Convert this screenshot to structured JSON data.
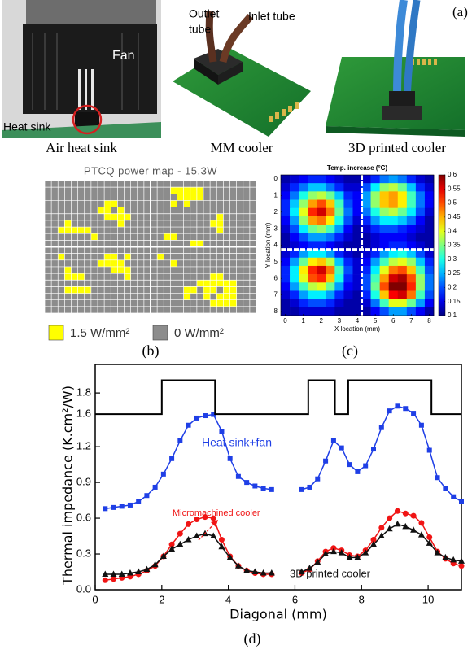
{
  "panel_a": {
    "captions": [
      "Air heat sink",
      "MM cooler",
      "3D printed cooler"
    ],
    "fan_label": "Fan",
    "heat_sink_label": "Heat sink",
    "outlet_label": [
      "Outlet",
      "tube"
    ],
    "inlet_label": "Inlet tube",
    "panel_label": "(a)"
  },
  "panel_labels": [
    "(b)",
    "(c)",
    "(d)"
  ],
  "chart_data": [
    {
      "type": "grid",
      "title": "PTCQ power map - 15.3W",
      "rows": 20,
      "cols": 32,
      "on_color": "#ffff00",
      "off_color": "#8c8c8c",
      "cells": [
        [
          1,
          19
        ],
        [
          1,
          20
        ],
        [
          1,
          21
        ],
        [
          1,
          22
        ],
        [
          1,
          23
        ],
        [
          2,
          20
        ],
        [
          2,
          21
        ],
        [
          2,
          22
        ],
        [
          2,
          23
        ],
        [
          3,
          9
        ],
        [
          3,
          10
        ],
        [
          3,
          19
        ],
        [
          3,
          21
        ],
        [
          4,
          8
        ],
        [
          4,
          9
        ],
        [
          4,
          11
        ],
        [
          5,
          9
        ],
        [
          5,
          10
        ],
        [
          5,
          11
        ],
        [
          5,
          12
        ],
        [
          5,
          26
        ],
        [
          6,
          3
        ],
        [
          6,
          11
        ],
        [
          6,
          25
        ],
        [
          6,
          26
        ],
        [
          7,
          2
        ],
        [
          7,
          3
        ],
        [
          7,
          4
        ],
        [
          7,
          5
        ],
        [
          7,
          6
        ],
        [
          7,
          26
        ],
        [
          8,
          7
        ],
        [
          8,
          18
        ],
        [
          8,
          19
        ],
        [
          9,
          22
        ],
        [
          9,
          23
        ],
        [
          11,
          2
        ],
        [
          11,
          9
        ],
        [
          11,
          10
        ],
        [
          11,
          12
        ],
        [
          11,
          17
        ],
        [
          12,
          8
        ],
        [
          12,
          9
        ],
        [
          12,
          10
        ],
        [
          12,
          11
        ],
        [
          12,
          19
        ],
        [
          13,
          3
        ],
        [
          13,
          10
        ],
        [
          13,
          11
        ],
        [
          13,
          12
        ],
        [
          14,
          3
        ],
        [
          14,
          4
        ],
        [
          14,
          5
        ],
        [
          14,
          12
        ],
        [
          14,
          25
        ],
        [
          14,
          26
        ],
        [
          15,
          23
        ],
        [
          15,
          24
        ],
        [
          15,
          25
        ],
        [
          15,
          26
        ],
        [
          15,
          27
        ],
        [
          15,
          28
        ],
        [
          16,
          3
        ],
        [
          16,
          4
        ],
        [
          16,
          5
        ],
        [
          16,
          6
        ],
        [
          16,
          21
        ],
        [
          16,
          22
        ],
        [
          16,
          24
        ],
        [
          16,
          25
        ],
        [
          16,
          27
        ],
        [
          16,
          28
        ],
        [
          17,
          21
        ],
        [
          17,
          24
        ],
        [
          17,
          26
        ],
        [
          17,
          27
        ],
        [
          17,
          28
        ],
        [
          18,
          25
        ],
        [
          18,
          26
        ],
        [
          18,
          27
        ],
        [
          18,
          28
        ]
      ],
      "legend": [
        {
          "label": "1.5 W/mm²",
          "color": "#ffff00"
        },
        {
          "label": "0 W/mm²",
          "color": "#8c8c8c"
        }
      ]
    },
    {
      "type": "heatmap",
      "title": "Temp. increase (°C)",
      "xlabel": "X location (mm)",
      "ylabel": "Y location (mm)",
      "x": [
        0,
        0.5,
        1,
        1.5,
        2,
        2.5,
        3,
        3.5,
        4,
        4.5,
        5,
        5.5,
        6,
        6.5,
        7,
        7.5,
        8
      ],
      "y": [
        0,
        0.5,
        1,
        1.5,
        2,
        2.5,
        3,
        3.5,
        4,
        4.5,
        5,
        5.5,
        6,
        6.5,
        7,
        7.5,
        8
      ],
      "xlim": [
        -0.25,
        8.25
      ],
      "ylim": [
        -0.25,
        8.25
      ],
      "y_reversed": true,
      "xticks": [
        0,
        1,
        2,
        3,
        4,
        5,
        6,
        7,
        8
      ],
      "yticks": [
        0,
        1,
        2,
        3,
        4,
        5,
        6,
        7,
        8
      ],
      "clim": [
        0.1,
        0.6
      ],
      "cticks": [
        0.1,
        0.15,
        0.2,
        0.25,
        0.3,
        0.35,
        0.4,
        0.45,
        0.5,
        0.55,
        0.6
      ],
      "z": [
        [
          0.12,
          0.14,
          0.16,
          0.18,
          0.18,
          0.16,
          0.14,
          0.12,
          0.12,
          0.14,
          0.18,
          0.22,
          0.24,
          0.22,
          0.18,
          0.14,
          0.12
        ],
        [
          0.14,
          0.18,
          0.22,
          0.26,
          0.26,
          0.22,
          0.18,
          0.14,
          0.14,
          0.2,
          0.28,
          0.36,
          0.38,
          0.34,
          0.26,
          0.18,
          0.14
        ],
        [
          0.16,
          0.22,
          0.3,
          0.36,
          0.38,
          0.34,
          0.26,
          0.18,
          0.16,
          0.24,
          0.36,
          0.44,
          0.46,
          0.42,
          0.32,
          0.22,
          0.16
        ],
        [
          0.18,
          0.26,
          0.36,
          0.46,
          0.5,
          0.44,
          0.32,
          0.2,
          0.16,
          0.24,
          0.36,
          0.44,
          0.46,
          0.42,
          0.32,
          0.22,
          0.16
        ],
        [
          0.18,
          0.28,
          0.4,
          0.52,
          0.56,
          0.48,
          0.34,
          0.22,
          0.16,
          0.22,
          0.3,
          0.36,
          0.38,
          0.34,
          0.28,
          0.2,
          0.14
        ],
        [
          0.16,
          0.24,
          0.36,
          0.46,
          0.48,
          0.42,
          0.3,
          0.2,
          0.14,
          0.18,
          0.24,
          0.28,
          0.28,
          0.26,
          0.22,
          0.16,
          0.12
        ],
        [
          0.14,
          0.2,
          0.28,
          0.34,
          0.36,
          0.32,
          0.24,
          0.16,
          0.12,
          0.14,
          0.18,
          0.2,
          0.2,
          0.18,
          0.16,
          0.14,
          0.12
        ],
        [
          0.12,
          0.16,
          0.2,
          0.24,
          0.24,
          0.22,
          0.18,
          0.14,
          0.12,
          0.12,
          0.14,
          0.16,
          0.16,
          0.16,
          0.14,
          0.12,
          0.12
        ],
        [
          0.12,
          0.14,
          0.16,
          0.18,
          0.18,
          0.16,
          0.14,
          0.12,
          0.12,
          0.12,
          0.14,
          0.16,
          0.18,
          0.18,
          0.16,
          0.14,
          0.12
        ],
        [
          0.14,
          0.18,
          0.24,
          0.28,
          0.28,
          0.24,
          0.18,
          0.14,
          0.12,
          0.14,
          0.18,
          0.24,
          0.28,
          0.3,
          0.26,
          0.2,
          0.14
        ],
        [
          0.16,
          0.24,
          0.34,
          0.42,
          0.44,
          0.38,
          0.26,
          0.18,
          0.14,
          0.16,
          0.24,
          0.32,
          0.38,
          0.4,
          0.36,
          0.26,
          0.18
        ],
        [
          0.18,
          0.28,
          0.42,
          0.52,
          0.56,
          0.48,
          0.32,
          0.2,
          0.14,
          0.18,
          0.28,
          0.4,
          0.48,
          0.5,
          0.44,
          0.32,
          0.2
        ],
        [
          0.18,
          0.28,
          0.4,
          0.5,
          0.52,
          0.44,
          0.3,
          0.18,
          0.14,
          0.2,
          0.32,
          0.46,
          0.56,
          0.58,
          0.5,
          0.36,
          0.22
        ],
        [
          0.16,
          0.24,
          0.32,
          0.38,
          0.4,
          0.34,
          0.24,
          0.16,
          0.14,
          0.2,
          0.34,
          0.5,
          0.6,
          0.6,
          0.52,
          0.36,
          0.22
        ],
        [
          0.14,
          0.18,
          0.24,
          0.28,
          0.28,
          0.24,
          0.18,
          0.14,
          0.12,
          0.18,
          0.3,
          0.44,
          0.54,
          0.56,
          0.48,
          0.32,
          0.2
        ],
        [
          0.12,
          0.14,
          0.18,
          0.2,
          0.2,
          0.18,
          0.14,
          0.12,
          0.12,
          0.14,
          0.22,
          0.32,
          0.4,
          0.4,
          0.34,
          0.24,
          0.16
        ],
        [
          0.12,
          0.12,
          0.14,
          0.14,
          0.14,
          0.14,
          0.12,
          0.12,
          0.12,
          0.12,
          0.16,
          0.2,
          0.24,
          0.24,
          0.2,
          0.16,
          0.12
        ]
      ]
    },
    {
      "type": "line",
      "xlabel": "Diagonal (mm)",
      "ylabel": "Thermal impedance (K.cm²/W)",
      "xlim": [
        0,
        11
      ],
      "xticks": [
        0,
        2,
        4,
        6,
        8,
        10
      ],
      "ylim": [
        0,
        1.89
      ],
      "yticks": [
        {
          "value": 0,
          "label": "0.0"
        },
        0.3,
        0.6,
        0.9,
        1.2
      ],
      "y2lim": [
        -0.06,
        2.07
      ],
      "y2ticks": [
        1.6,
        1.8
      ],
      "series": [
        {
          "name": "Heat sink+fan",
          "color": "#1f3fe6",
          "marker": "square",
          "x": [
            0.3,
            0.55,
            0.8,
            1.05,
            1.3,
            1.55,
            1.8,
            2.05,
            2.3,
            2.55,
            2.8,
            3.05,
            3.3,
            3.55,
            3.8,
            4.05,
            4.3,
            4.55,
            4.8,
            5.05,
            5.3,
            5.75,
            6.2,
            6.44,
            6.68,
            6.92,
            7.16,
            7.4,
            7.64,
            7.88,
            8.12,
            8.36,
            8.6,
            8.84,
            9.08,
            9.32,
            9.56,
            9.8,
            10.04,
            10.28,
            10.52,
            10.76,
            11
          ],
          "values": [
            0.68,
            0.69,
            0.7,
            0.71,
            0.74,
            0.79,
            0.86,
            0.97,
            1.1,
            1.25,
            1.38,
            1.44,
            1.46,
            1.47,
            1.33,
            1.1,
            0.95,
            0.9,
            0.87,
            0.85,
            0.84,
            null,
            0.84,
            0.86,
            0.93,
            1.08,
            1.25,
            1.19,
            1.05,
            0.99,
            1.04,
            1.18,
            1.36,
            1.5,
            1.54,
            1.52,
            1.48,
            1.38,
            1.17,
            0.94,
            0.85,
            0.78,
            0.74
          ]
        },
        {
          "name": "Micromachined cooler",
          "color": "#f01414",
          "marker": "circle",
          "x": [
            0.3,
            0.55,
            0.8,
            1.05,
            1.3,
            1.55,
            1.8,
            2.05,
            2.3,
            2.55,
            2.8,
            3.05,
            3.3,
            3.55,
            3.8,
            4.05,
            4.3,
            4.55,
            4.8,
            5.05,
            5.3,
            5.75,
            6.2,
            6.44,
            6.68,
            6.92,
            7.16,
            7.4,
            7.64,
            7.88,
            8.12,
            8.36,
            8.6,
            8.84,
            9.08,
            9.32,
            9.56,
            9.8,
            10.04,
            10.28,
            10.52,
            10.76,
            11
          ],
          "values": [
            0.08,
            0.09,
            0.1,
            0.11,
            0.13,
            0.16,
            0.2,
            0.28,
            0.38,
            0.47,
            0.55,
            0.59,
            0.61,
            0.6,
            0.42,
            0.28,
            0.2,
            0.16,
            0.14,
            0.13,
            0.13,
            null,
            0.14,
            0.17,
            0.24,
            0.32,
            0.35,
            0.33,
            0.29,
            0.28,
            0.33,
            0.42,
            0.52,
            0.6,
            0.66,
            0.64,
            0.62,
            0.56,
            0.44,
            0.32,
            0.26,
            0.22,
            0.2
          ]
        },
        {
          "name": "3D printed cooler",
          "color": "#111111",
          "marker": "triangle",
          "x": [
            0.3,
            0.55,
            0.8,
            1.05,
            1.3,
            1.55,
            1.8,
            2.05,
            2.3,
            2.55,
            2.8,
            3.05,
            3.3,
            3.55,
            3.8,
            4.05,
            4.3,
            4.55,
            4.8,
            5.05,
            5.3,
            5.75,
            6.2,
            6.44,
            6.68,
            6.92,
            7.16,
            7.4,
            7.64,
            7.88,
            8.12,
            8.36,
            8.6,
            8.84,
            9.08,
            9.32,
            9.56,
            9.8,
            10.04,
            10.28,
            10.52,
            10.76,
            11
          ],
          "values": [
            0.13,
            0.13,
            0.13,
            0.14,
            0.15,
            0.17,
            0.21,
            0.28,
            0.34,
            0.38,
            0.42,
            0.45,
            0.47,
            0.45,
            0.36,
            0.27,
            0.2,
            0.16,
            0.15,
            0.14,
            0.14,
            null,
            0.15,
            0.18,
            0.23,
            0.3,
            0.32,
            0.31,
            0.27,
            0.27,
            0.31,
            0.38,
            0.45,
            0.51,
            0.55,
            0.53,
            0.5,
            0.46,
            0.39,
            0.31,
            0.27,
            0.25,
            0.24
          ]
        },
        {
          "color": "#000000",
          "marker": "none",
          "axis": "y2",
          "x": [
            0,
            2,
            2,
            3.6,
            3.6,
            6.4,
            6.4,
            7.2,
            7.2,
            7.6,
            7.6,
            10.1,
            10.1,
            11
          ],
          "values": [
            1.6,
            1.6,
            1.92,
            1.92,
            1.6,
            1.6,
            1.92,
            1.92,
            1.6,
            1.6,
            1.92,
            1.92,
            1.6,
            1.6
          ]
        }
      ]
    }
  ]
}
